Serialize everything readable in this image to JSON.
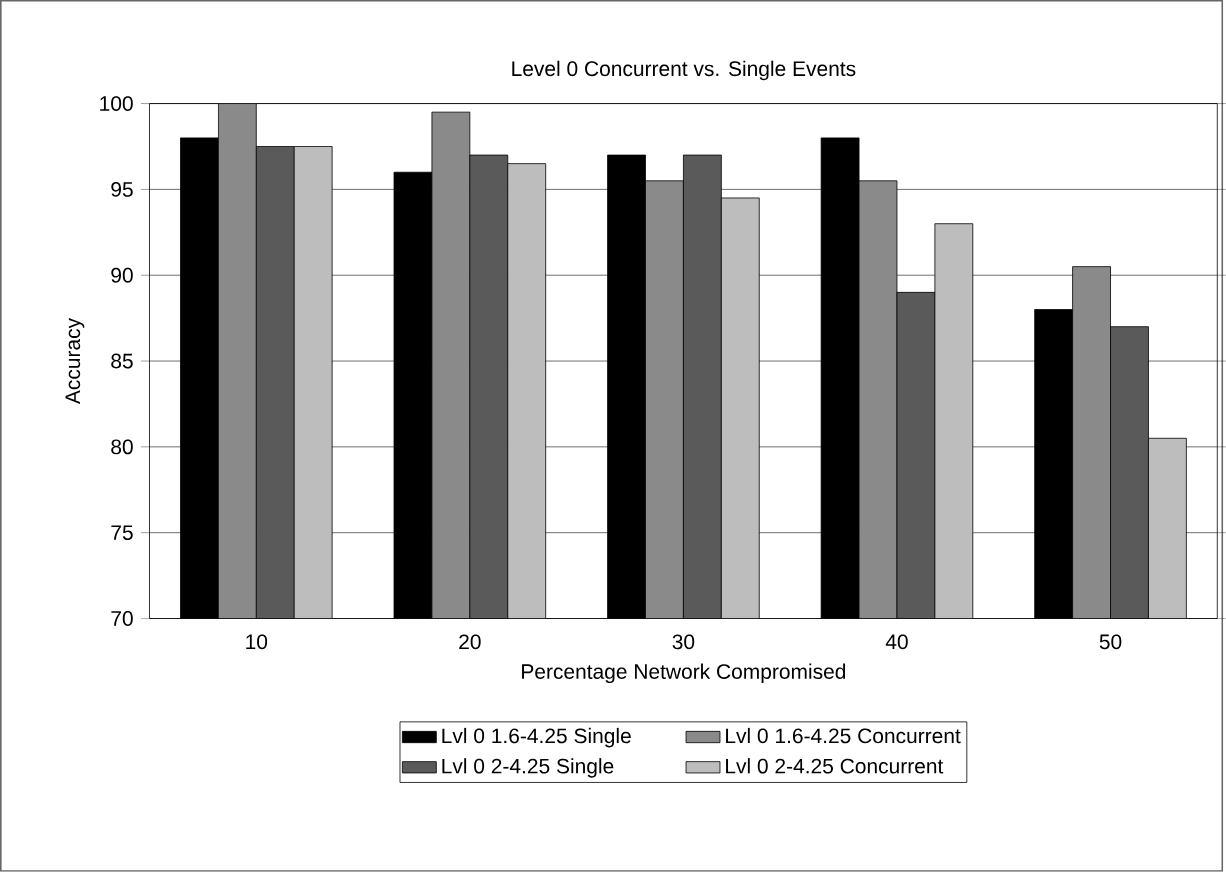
{
  "chart_data": {
    "type": "bar",
    "title": "Level 0 Concurrent vs. Single Events",
    "xlabel": "Percentage Network Compromised",
    "ylabel": "Accuracy",
    "categories": [
      "10",
      "20",
      "30",
      "40",
      "50"
    ],
    "series": [
      {
        "name": "Lvl 0 1.6-4.25 Single",
        "color": "#000000",
        "values": [
          98,
          96,
          97,
          98,
          88
        ]
      },
      {
        "name": "Lvl 0 1.6-4.25 Concurrent",
        "color": "#8a8a8a",
        "values": [
          100,
          99.5,
          95.5,
          95.5,
          90.5
        ]
      },
      {
        "name": "Lvl 0 2-4.25 Single",
        "color": "#5a5a5a",
        "values": [
          97.5,
          97,
          97,
          89,
          87
        ]
      },
      {
        "name": "Lvl 0 2-4.25 Concurrent",
        "color": "#bdbdbd",
        "values": [
          97.5,
          96.5,
          94.5,
          93,
          80.5
        ]
      }
    ],
    "ylim": [
      70,
      100
    ],
    "yticks": [
      70,
      75,
      80,
      85,
      90,
      95,
      100
    ],
    "grid": "y",
    "legend": "bottom"
  }
}
